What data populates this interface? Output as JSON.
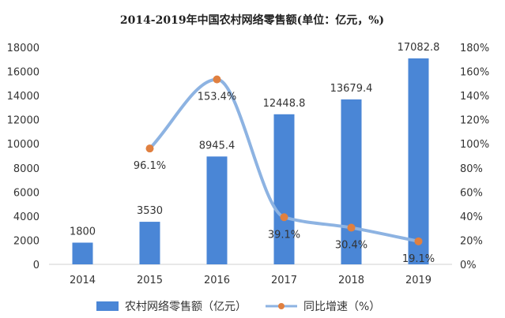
{
  "chart_data": {
    "type": "bar",
    "title": "2014-2019年中国农村网络零售额(单位：亿元，%)",
    "categories": [
      "2014",
      "2015",
      "2016",
      "2017",
      "2018",
      "2019"
    ],
    "series": [
      {
        "name": "农村网络零售额（亿元）",
        "type": "bar",
        "axis": "left",
        "color": "#4A86D6",
        "values": [
          1800,
          3530,
          8945.4,
          12448.8,
          13679.4,
          17082.8
        ],
        "labels": [
          "1800",
          "3530",
          "8945.4",
          "12448.8",
          "13679.4",
          "17082.8"
        ]
      },
      {
        "name": "同比增速（%）",
        "type": "line",
        "smooth": true,
        "axis": "right",
        "color": "#8DB3E2",
        "marker_color": "#E08040",
        "values": [
          null,
          96.1,
          153.4,
          39.1,
          30.4,
          19.1
        ],
        "labels": [
          "",
          "96.1%",
          "153.4%",
          "39.1%",
          "30.4%",
          "19.1%"
        ]
      }
    ],
    "y_left": {
      "min": 0,
      "max": 18000,
      "ticks": [
        "0",
        "2000",
        "4000",
        "6000",
        "8000",
        "10000",
        "12000",
        "14000",
        "16000",
        "18000"
      ]
    },
    "y_right": {
      "min": 0,
      "max": 180,
      "ticks": [
        "0%",
        "20%",
        "40%",
        "60%",
        "80%",
        "100%",
        "120%",
        "140%",
        "160%",
        "180%"
      ]
    },
    "grid": false,
    "legend_position": "bottom"
  }
}
